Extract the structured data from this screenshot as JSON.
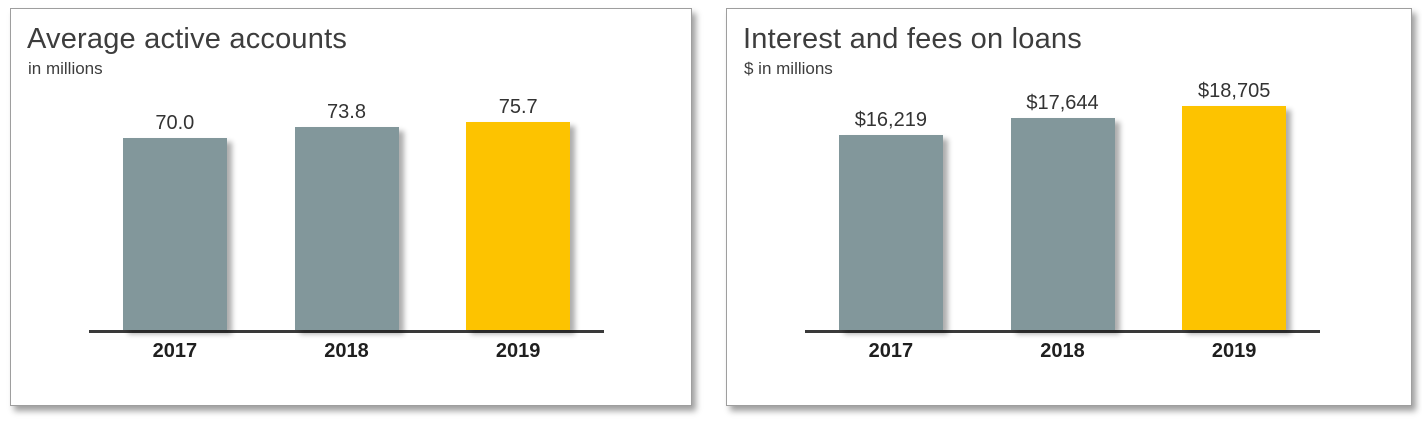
{
  "chart_data": [
    {
      "type": "bar",
      "title": "Average active accounts",
      "subtitle": "in millions",
      "categories": [
        "2017",
        "2018",
        "2019"
      ],
      "values": [
        70.0,
        73.8,
        75.7
      ],
      "value_labels": [
        "70.0",
        "73.8",
        "75.7"
      ],
      "ylim": [
        0,
        80
      ],
      "bar_colors": [
        "#82979b",
        "#82979b",
        "#fdc300"
      ],
      "highlight_category": "2019",
      "grid": false,
      "legend": false,
      "xlabel": "",
      "ylabel": ""
    },
    {
      "type": "bar",
      "title": "Interest and fees on loans",
      "subtitle": "$ in millions",
      "categories": [
        "2017",
        "2018",
        "2019"
      ],
      "values": [
        16219,
        17644,
        18705
      ],
      "value_labels": [
        "$16,219",
        "$17,644",
        "$18,705"
      ],
      "ylim": [
        0,
        20000
      ],
      "bar_colors": [
        "#82979b",
        "#82979b",
        "#fdc300"
      ],
      "highlight_category": "2019",
      "grid": false,
      "legend": false,
      "xlabel": "",
      "ylabel": ""
    }
  ],
  "colors": {
    "bar_default": "#82979b",
    "bar_highlight": "#fdc300",
    "axis": "#3a3a3a",
    "text_primary": "#3d3d3d",
    "panel_border": "#9e9e9e"
  }
}
